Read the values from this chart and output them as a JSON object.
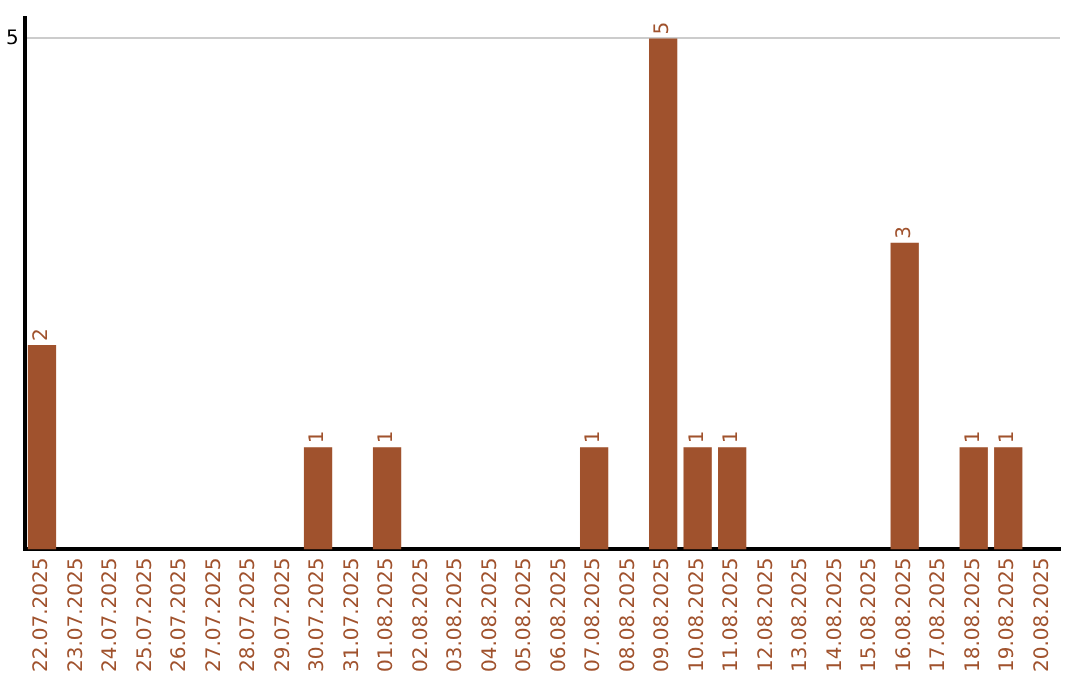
{
  "chart_data": {
    "type": "bar",
    "categories": [
      "22.07.2025",
      "23.07.2025",
      "24.07.2025",
      "25.07.2025",
      "26.07.2025",
      "27.07.2025",
      "28.07.2025",
      "29.07.2025",
      "30.07.2025",
      "31.07.2025",
      "01.08.2025",
      "02.08.2025",
      "03.08.2025",
      "04.08.2025",
      "05.08.2025",
      "06.08.2025",
      "07.08.2025",
      "08.08.2025",
      "09.08.2025",
      "10.08.2025",
      "11.08.2025",
      "12.08.2025",
      "13.08.2025",
      "14.08.2025",
      "15.08.2025",
      "16.08.2025",
      "17.08.2025",
      "18.08.2025",
      "19.08.2025",
      "20.08.2025"
    ],
    "values": [
      2,
      0,
      0,
      0,
      0,
      0,
      0,
      0,
      1,
      0,
      1,
      0,
      0,
      0,
      0,
      0,
      1,
      0,
      5,
      1,
      1,
      0,
      0,
      0,
      0,
      3,
      0,
      1,
      1,
      0
    ],
    "value_labels": [
      "2",
      null,
      null,
      null,
      null,
      null,
      null,
      null,
      "1",
      null,
      "1",
      null,
      null,
      null,
      null,
      null,
      "1",
      null,
      "5",
      "1",
      "1",
      null,
      null,
      null,
      null,
      "3",
      null,
      "1",
      "1",
      null
    ],
    "color": "#a0522d",
    "ylim": [
      0,
      5.2
    ],
    "yticks": [
      5
    ],
    "grid": "y",
    "legend": false
  }
}
